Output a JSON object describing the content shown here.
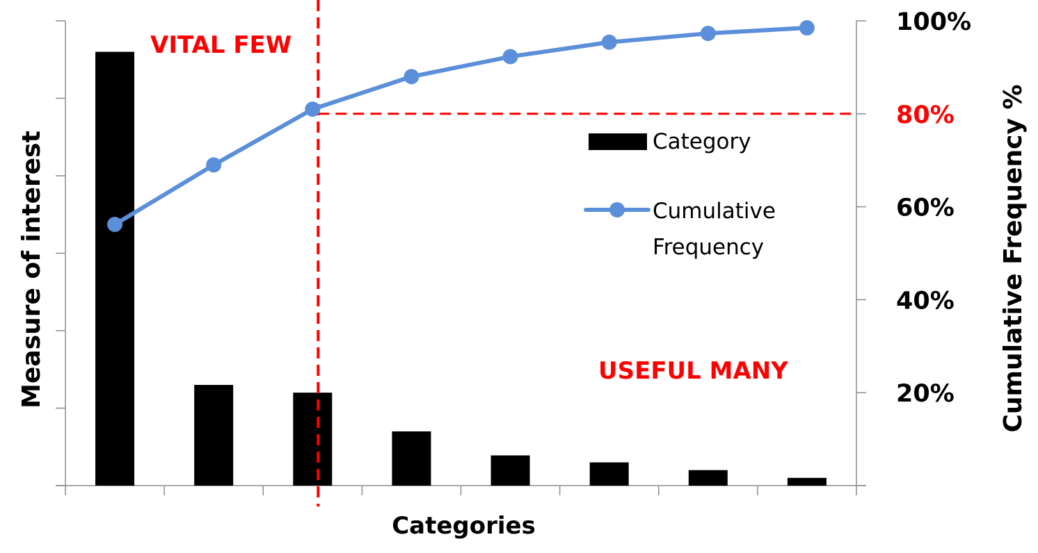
{
  "chart_data": {
    "type": "bar",
    "categories": [
      "",
      "",
      "",
      "",
      "",
      "",
      "",
      ""
    ],
    "series": [
      {
        "name": "Category",
        "chart_type": "bar",
        "axis": "left",
        "values": [
          56,
          13,
          12,
          7,
          3.9,
          3,
          2,
          1
        ],
        "color": "#000000"
      },
      {
        "name": "Cumulative Frequency",
        "chart_type": "line",
        "axis": "right",
        "values": [
          56.2,
          69.0,
          81.0,
          88.0,
          92.3,
          95.4,
          97.3,
          98.5
        ],
        "color": "#5b8fd9",
        "markers": true
      }
    ],
    "xlabel": "Categories",
    "ylabel": "Measure of interest",
    "ylabel_right": "Cumulative Frequency %",
    "ylim": [
      0,
      60
    ],
    "ylim_right": [
      0,
      100
    ],
    "right_ticks": [
      {
        "value": 20,
        "label": "20%",
        "color": "#000000"
      },
      {
        "value": 40,
        "label": "40%",
        "color": "#000000"
      },
      {
        "value": 60,
        "label": "60%",
        "color": "#000000"
      },
      {
        "value": 80,
        "label": "80%",
        "color": "#ff0000"
      },
      {
        "value": 100,
        "label": "100%",
        "color": "#000000"
      }
    ],
    "left_tick_count": 6,
    "threshold": {
      "value": 80,
      "after_category_index": 2,
      "color": "#ff0000"
    },
    "annotations": [
      {
        "text": "VITAL FEW",
        "color": "#ff0000"
      },
      {
        "text": "USEFUL MANY",
        "color": "#ff0000"
      }
    ],
    "legend": {
      "placement": "right-middle",
      "entries": [
        {
          "label": "Category",
          "symbol": "bar"
        },
        {
          "label_lines": [
            "Cumulative",
            "Frequency"
          ],
          "symbol": "line-marker"
        }
      ]
    },
    "grid": false
  }
}
